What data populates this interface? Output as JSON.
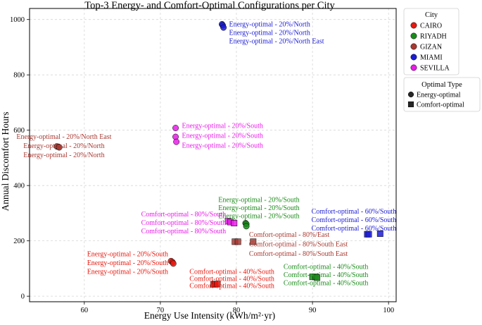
{
  "chart_data": {
    "type": "scatter",
    "title": "Top-3 Energy- and Comfort-Optimal Configurations per City",
    "xlabel": "Energy Use Intensity (kWh/m²·yr)",
    "ylabel": "Annual Discomfort Hours",
    "xlim": [
      52.8,
      101.0
    ],
    "ylim": [
      -20,
      1040
    ],
    "xticks": [
      60,
      70,
      80,
      90,
      100
    ],
    "yticks": [
      0,
      200,
      400,
      600,
      800,
      1000
    ],
    "grid": true,
    "legend": {
      "placement": "right",
      "city_title": "City",
      "type_title": "Optimal Type",
      "cities": [
        {
          "name": "CAIRO",
          "color": "#e8190f"
        },
        {
          "name": "RIYADH",
          "color": "#1a8c1a"
        },
        {
          "name": "GIZAN",
          "color": "#a83a32"
        },
        {
          "name": "MIAMI",
          "color": "#1c1cd6"
        },
        {
          "name": "SEVILLA",
          "color": "#e81ce8"
        }
      ],
      "types": [
        {
          "name": "Energy-optimal",
          "marker": "circle"
        },
        {
          "name": "Comfort-optimal",
          "marker": "square"
        }
      ]
    },
    "series": [
      {
        "city": "CAIRO",
        "type": "Energy-optimal",
        "color": "#e8190f",
        "points": [
          {
            "x": 71.4,
            "y": 127,
            "label": "Energy-optimal - 20%/South"
          },
          {
            "x": 71.6,
            "y": 123,
            "label": "Energy-optimal - 20%/South"
          },
          {
            "x": 71.7,
            "y": 118,
            "label": "Energy-optimal - 20%/South"
          }
        ]
      },
      {
        "city": "CAIRO",
        "type": "Comfort-optimal",
        "color": "#e8190f",
        "points": [
          {
            "x": 77.0,
            "y": 43,
            "label": "Comfort-optimal - 40%/South"
          },
          {
            "x": 77.2,
            "y": 44,
            "label": "Comfort-optimal - 40%/South"
          },
          {
            "x": 77.5,
            "y": 44,
            "label": "Comfort-optimal - 40%/South"
          }
        ]
      },
      {
        "city": "RIYADH",
        "type": "Energy-optimal",
        "color": "#1a8c1a",
        "points": [
          {
            "x": 81.2,
            "y": 264,
            "label": "Energy-optimal - 20%/South"
          },
          {
            "x": 81.3,
            "y": 261,
            "label": "Energy-optimal - 20%/South"
          },
          {
            "x": 81.3,
            "y": 253,
            "label": "Energy-optimal - 20%/South"
          }
        ]
      },
      {
        "city": "RIYADH",
        "type": "Comfort-optimal",
        "color": "#1a8c1a",
        "points": [
          {
            "x": 90.0,
            "y": 70,
            "label": "Comfort-optimal - 40%/South"
          },
          {
            "x": 90.4,
            "y": 70,
            "label": "Comfort-optimal - 40%/South"
          },
          {
            "x": 90.6,
            "y": 67,
            "label": "Comfort-optimal - 40%/South"
          }
        ]
      },
      {
        "city": "GIZAN",
        "type": "Energy-optimal",
        "color": "#a83a32",
        "points": [
          {
            "x": 56.4,
            "y": 541,
            "label": "Energy-optimal - 20%/North East"
          },
          {
            "x": 56.6,
            "y": 540,
            "label": "Energy-optimal - 20%/North"
          },
          {
            "x": 56.7,
            "y": 538,
            "label": "Energy-optimal - 20%/North"
          }
        ]
      },
      {
        "city": "GIZAN",
        "type": "Comfort-optimal",
        "color": "#a83a32",
        "points": [
          {
            "x": 79.8,
            "y": 197,
            "label": "Comfort-optimal - 80%/East"
          },
          {
            "x": 80.2,
            "y": 197,
            "label": "Comfort-optimal - 80%/South East"
          },
          {
            "x": 82.2,
            "y": 197,
            "label": "Comfort-optimal - 80%/South East"
          }
        ]
      },
      {
        "city": "MIAMI",
        "type": "Energy-optimal",
        "color": "#1c1cd6",
        "points": [
          {
            "x": 78.1,
            "y": 983,
            "label": "Energy-optimal - 20%/North"
          },
          {
            "x": 78.2,
            "y": 979,
            "label": "Energy-optimal - 20%/North"
          },
          {
            "x": 78.3,
            "y": 971,
            "label": "Energy-optimal - 20%/North East"
          }
        ]
      },
      {
        "city": "MIAMI",
        "type": "Comfort-optimal",
        "color": "#1c1cd6",
        "points": [
          {
            "x": 97.2,
            "y": 224,
            "label": "Comfort-optimal - 60%/South"
          },
          {
            "x": 97.4,
            "y": 224,
            "label": "Comfort-optimal - 60%/South"
          },
          {
            "x": 98.9,
            "y": 226,
            "label": "Comfort-optimal - 60%/South"
          }
        ]
      },
      {
        "city": "SEVILLA",
        "type": "Energy-optimal",
        "color": "#e81ce8",
        "points": [
          {
            "x": 72.0,
            "y": 608,
            "label": "Energy-optimal - 20%/South"
          },
          {
            "x": 72.0,
            "y": 576,
            "label": "Energy-optimal - 20%/South"
          },
          {
            "x": 72.1,
            "y": 558,
            "label": "Energy-optimal - 20%/South"
          }
        ]
      },
      {
        "city": "SEVILLA",
        "type": "Comfort-optimal",
        "color": "#e81ce8",
        "points": [
          {
            "x": 78.9,
            "y": 271,
            "label": "Comfort-optimal - 80%/South"
          },
          {
            "x": 79.2,
            "y": 268,
            "label": "Comfort-optimal - 80%/South"
          },
          {
            "x": 79.7,
            "y": 264,
            "label": "Comfort-optimal - 80%/South"
          }
        ]
      }
    ]
  }
}
